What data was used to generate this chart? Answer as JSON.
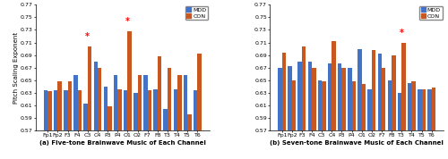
{
  "channels": [
    "Fp1",
    "Fp2",
    "F3",
    "F4",
    "C3",
    "C4",
    "P3",
    "P4",
    "O1",
    "O2",
    "F7",
    "F8",
    "T3",
    "T4",
    "T5",
    "T6"
  ],
  "five_tone_mdd": [
    0.634,
    0.634,
    0.634,
    0.658,
    0.612,
    0.68,
    0.64,
    0.658,
    0.634,
    0.63,
    0.658,
    0.636,
    0.604,
    0.636,
    0.658,
    0.634
  ],
  "five_tone_con": [
    0.632,
    0.648,
    0.648,
    0.634,
    0.704,
    0.67,
    0.608,
    0.636,
    0.728,
    0.658,
    0.634,
    0.688,
    0.67,
    0.658,
    0.596,
    0.692
  ],
  "seven_tone_mdd": [
    0.669,
    0.672,
    0.68,
    0.68,
    0.65,
    0.676,
    0.676,
    0.67,
    0.7,
    0.636,
    0.692,
    0.65,
    0.63,
    0.646,
    0.636,
    0.636
  ],
  "seven_tone_con": [
    0.694,
    0.65,
    0.704,
    0.67,
    0.648,
    0.712,
    0.67,
    0.648,
    0.644,
    0.698,
    0.67,
    0.69,
    0.71,
    0.648,
    0.636,
    0.638
  ],
  "five_star_channels": [
    "C3",
    "O1"
  ],
  "seven_star_channels": [
    "T3"
  ],
  "mdd_color": "#4472c4",
  "con_color": "#c85820",
  "ylim": [
    0.57,
    0.77
  ],
  "yticks": [
    0.57,
    0.59,
    0.61,
    0.63,
    0.65,
    0.67,
    0.69,
    0.71,
    0.73,
    0.75,
    0.77
  ],
  "ylabel": "Pitch Scaling Exponent",
  "title_a": "(a) Five-tone Brainwave Music of Each Channel",
  "title_b": "(b) Seven-tone Brainwave Music of Each Channel",
  "tick_fontsize": 4.5,
  "label_fontsize": 5.0,
  "bar_width": 0.4
}
